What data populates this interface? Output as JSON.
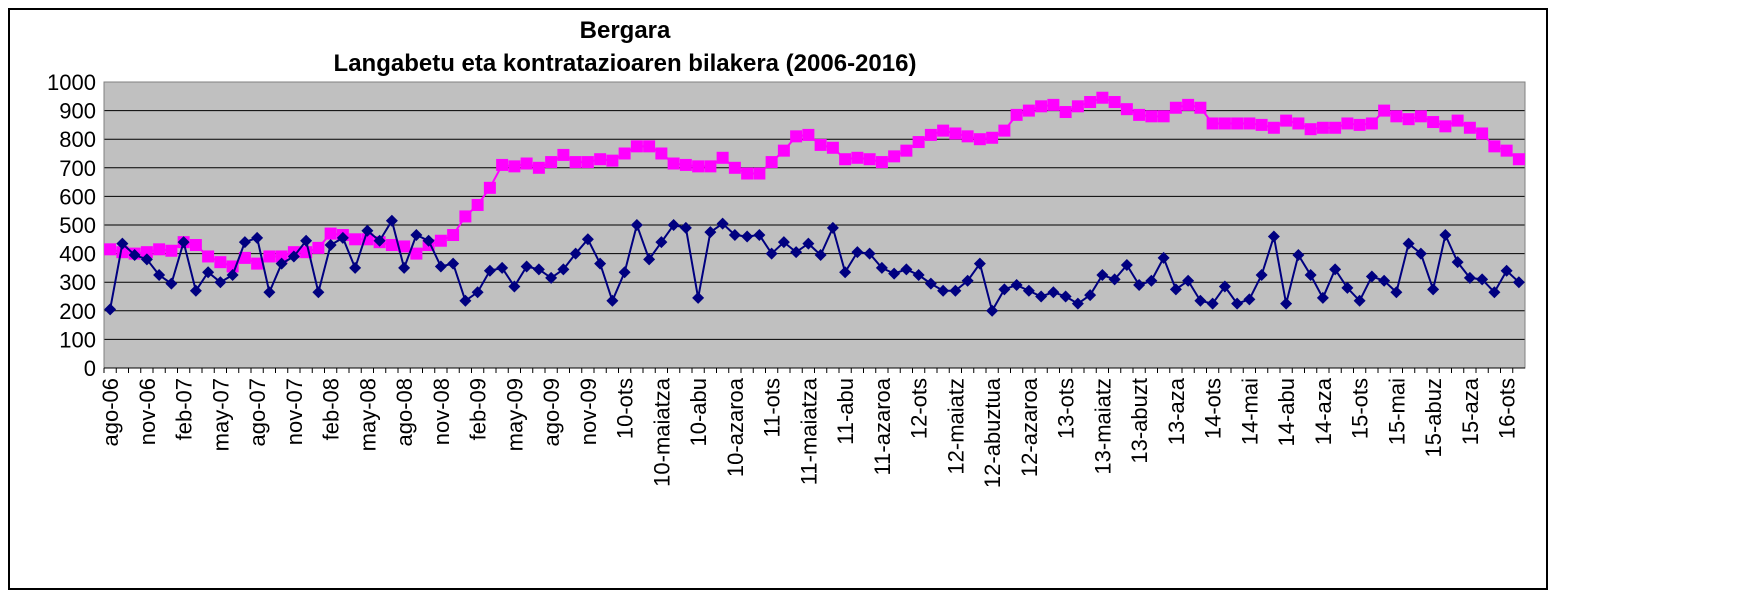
{
  "chart_data": {
    "type": "line",
    "title": "Bergara",
    "subtitle": "Langabetu eta kontratazioaren bilakera (2006-2016)",
    "categories": [
      "ago-06",
      null,
      null,
      "nov-06",
      null,
      null,
      "feb-07",
      null,
      null,
      "may-07",
      null,
      null,
      "ago-07",
      null,
      null,
      "nov-07",
      null,
      null,
      "feb-08",
      null,
      null,
      "may-08",
      null,
      null,
      "ago-08",
      null,
      null,
      "nov-08",
      null,
      null,
      "feb-09",
      null,
      null,
      "may-09",
      null,
      null,
      "ago-09",
      null,
      null,
      "nov-09",
      null,
      null,
      "10-ots",
      null,
      null,
      "10-maiatza",
      null,
      null,
      "10-abu",
      null,
      null,
      "10-azaroa",
      null,
      null,
      "11-ots",
      null,
      null,
      "11-maiatza",
      null,
      null,
      "11-abu",
      null,
      null,
      "11-azaroa",
      null,
      null,
      "12-ots",
      null,
      null,
      "12-maiatz",
      null,
      null,
      "12-abuztua",
      null,
      null,
      "12-azaroa",
      null,
      null,
      "13-ots",
      null,
      null,
      "13-maiatz",
      null,
      null,
      "13-abuzt",
      null,
      null,
      "13-aza",
      null,
      null,
      "14-ots",
      null,
      null,
      "14-mai",
      null,
      null,
      "14-abu",
      null,
      null,
      "14-aza",
      null,
      null,
      "15-ots",
      null,
      null,
      "15-mai",
      null,
      null,
      "15-abuz",
      null,
      null,
      "15-aza",
      null,
      null,
      "16-ots",
      null
    ],
    "series": [
      {
        "color": "#ff00ff",
        "marker": "square",
        "values": [
          415,
          405,
          400,
          405,
          415,
          410,
          440,
          430,
          390,
          370,
          355,
          385,
          365,
          390,
          390,
          405,
          405,
          420,
          470,
          465,
          450,
          450,
          440,
          430,
          425,
          400,
          430,
          445,
          465,
          530,
          570,
          630,
          710,
          705,
          715,
          700,
          720,
          745,
          720,
          720,
          730,
          725,
          750,
          775,
          775,
          750,
          715,
          710,
          705,
          705,
          735,
          700,
          680,
          680,
          720,
          760,
          810,
          815,
          780,
          770,
          730,
          735,
          730,
          720,
          740,
          760,
          790,
          815,
          830,
          820,
          810,
          800,
          805,
          830,
          885,
          900,
          915,
          920,
          895,
          915,
          930,
          945,
          930,
          905,
          885,
          880,
          880,
          910,
          920,
          910,
          855,
          855,
          855,
          855,
          850,
          840,
          865,
          855,
          835,
          840,
          840,
          855,
          850,
          855,
          900,
          880,
          870,
          880,
          860,
          845,
          865,
          840,
          820,
          775,
          760,
          730
        ]
      },
      {
        "color": "#000080",
        "marker": "diamond",
        "values": [
          205,
          435,
          395,
          380,
          325,
          295,
          440,
          270,
          335,
          300,
          325,
          440,
          455,
          265,
          365,
          390,
          445,
          265,
          430,
          455,
          350,
          480,
          445,
          515,
          350,
          465,
          445,
          355,
          365,
          235,
          265,
          340,
          350,
          285,
          355,
          345,
          315,
          345,
          400,
          450,
          365,
          235,
          335,
          500,
          380,
          440,
          500,
          490,
          245,
          475,
          505,
          465,
          460,
          465,
          400,
          440,
          405,
          435,
          395,
          490,
          335,
          405,
          400,
          350,
          330,
          345,
          325,
          295,
          270,
          270,
          305,
          365,
          200,
          275,
          290,
          270,
          250,
          265,
          250,
          225,
          255,
          325,
          310,
          360,
          290,
          305,
          385,
          275,
          305,
          235,
          225,
          285,
          225,
          240,
          325,
          460,
          225,
          395,
          325,
          245,
          345,
          280,
          235,
          320,
          305,
          265,
          435,
          400,
          275,
          465,
          370,
          315,
          310,
          265,
          340,
          300
        ]
      }
    ],
    "ylim": [
      0,
      1000
    ],
    "yticks": [
      0,
      100,
      200,
      300,
      400,
      500,
      600,
      700,
      800,
      900,
      1000
    ],
    "grid": true
  }
}
